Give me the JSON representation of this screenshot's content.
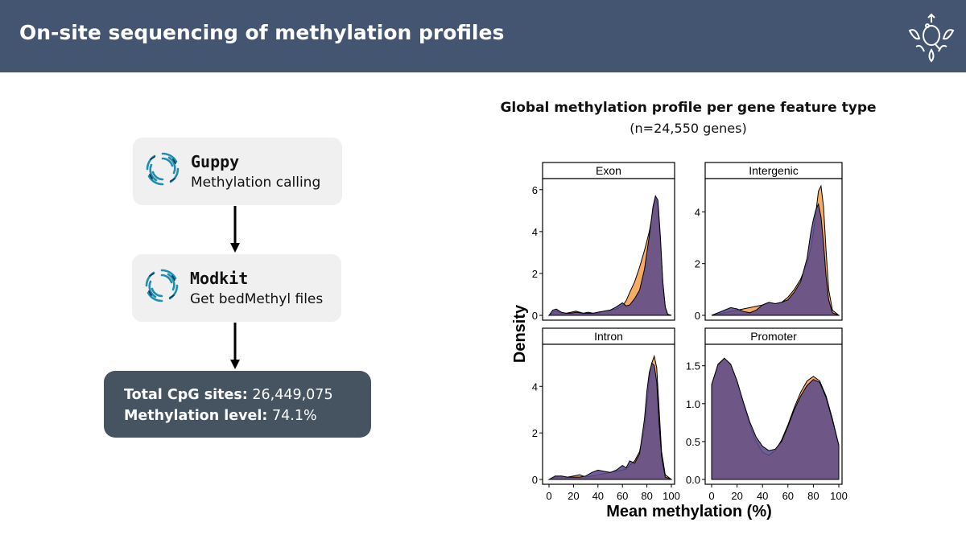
{
  "header": {
    "title": "On-site sequencing of methylation profiles",
    "logo_icon": "lotus-q-logo-icon",
    "background": "#435570"
  },
  "pipeline": {
    "steps": [
      {
        "name": "Guppy",
        "description": "Methylation calling",
        "icon": "nanopore-swirl-icon"
      },
      {
        "name": "Modkit",
        "description": "Get bedMethyl files",
        "icon": "nanopore-swirl-icon"
      }
    ],
    "summary": {
      "cpg_label": "Total CpG sites:",
      "cpg_value": "26,449,075",
      "meth_label": "Methylation level:",
      "meth_value": "74.1%",
      "background": "#465461"
    }
  },
  "chart_data": {
    "type": "area",
    "title": "Global methylation profile per gene feature type",
    "subtitle": "(n=24,550 genes)",
    "xlabel": "Mean methylation (%)",
    "ylabel": "Density",
    "xlim": [
      0,
      100
    ],
    "colors": {
      "series_a": "#f5a85a",
      "series_b": "#5b4a8c"
    },
    "panels": [
      {
        "title": "Exon",
        "ylim": [
          0,
          6.3
        ],
        "yticks": [
          0,
          2,
          4,
          6
        ],
        "series_a": {
          "x": [
            0,
            3,
            6,
            10,
            14,
            18,
            22,
            28,
            32,
            36,
            40,
            45,
            50,
            55,
            60,
            63,
            66,
            70,
            74,
            78,
            82,
            85,
            87,
            89,
            91,
            93,
            95,
            97,
            100
          ],
          "y": [
            0,
            0.15,
            0.2,
            0.1,
            0.1,
            0.15,
            0.2,
            0.1,
            0.15,
            0.1,
            0.1,
            0.2,
            0.25,
            0.3,
            0.45,
            0.7,
            1.1,
            1.6,
            2.3,
            3.1,
            4.0,
            5.0,
            5.6,
            5.2,
            3.5,
            1.5,
            0.4,
            0.05,
            0
          ]
        },
        "series_b": {
          "x": [
            0,
            3,
            6,
            10,
            14,
            18,
            22,
            28,
            32,
            36,
            40,
            45,
            50,
            55,
            60,
            63,
            66,
            70,
            74,
            78,
            82,
            85,
            87,
            89,
            91,
            93,
            95,
            97,
            100
          ],
          "y": [
            0,
            0.25,
            0.3,
            0.15,
            0.1,
            0.1,
            0.15,
            0.1,
            0.1,
            0.1,
            0.15,
            0.2,
            0.25,
            0.4,
            0.6,
            0.45,
            0.5,
            0.8,
            1.2,
            2.2,
            3.8,
            5.2,
            5.7,
            5.5,
            3.8,
            1.6,
            0.4,
            0.05,
            0
          ]
        }
      },
      {
        "title": "Intergenic",
        "ylim": [
          0,
          5.1
        ],
        "yticks": [
          0,
          2,
          4
        ],
        "series_a": {
          "x": [
            0,
            5,
            10,
            15,
            20,
            25,
            30,
            35,
            40,
            45,
            50,
            55,
            60,
            65,
            70,
            75,
            78,
            80,
            82,
            84,
            86,
            88,
            90,
            92,
            95,
            100
          ],
          "y": [
            0,
            0.05,
            0.1,
            0.15,
            0.2,
            0.25,
            0.3,
            0.35,
            0.4,
            0.5,
            0.45,
            0.5,
            0.7,
            1.0,
            1.4,
            2.0,
            2.6,
            3.2,
            4.0,
            4.8,
            5.0,
            4.2,
            2.5,
            1.0,
            0.2,
            0
          ]
        },
        "series_b": {
          "x": [
            0,
            5,
            10,
            15,
            20,
            25,
            30,
            35,
            40,
            45,
            50,
            55,
            60,
            65,
            70,
            75,
            78,
            80,
            82,
            84,
            86,
            88,
            90,
            92,
            95,
            100
          ],
          "y": [
            0,
            0.1,
            0.2,
            0.3,
            0.25,
            0.15,
            0.1,
            0.2,
            0.4,
            0.5,
            0.45,
            0.5,
            0.6,
            0.9,
            1.3,
            2.2,
            3.2,
            3.7,
            4.1,
            4.3,
            3.8,
            2.8,
            1.5,
            0.6,
            0.1,
            0
          ]
        }
      },
      {
        "title": "Intron",
        "ylim": [
          0,
          5.6
        ],
        "yticks": [
          0,
          2,
          4
        ],
        "series_a": {
          "x": [
            0,
            5,
            10,
            15,
            20,
            25,
            30,
            35,
            40,
            45,
            50,
            55,
            60,
            63,
            66,
            70,
            74,
            78,
            80,
            82,
            84,
            86,
            88,
            90,
            92,
            95,
            100
          ],
          "y": [
            0,
            0.1,
            0.15,
            0.1,
            0.15,
            0.2,
            0.1,
            0.15,
            0.2,
            0.25,
            0.3,
            0.35,
            0.4,
            0.45,
            0.6,
            0.8,
            1.2,
            2.2,
            3.2,
            4.3,
            5.0,
            5.3,
            4.8,
            3.0,
            1.2,
            0.2,
            0
          ]
        },
        "series_b": {
          "x": [
            0,
            5,
            10,
            15,
            20,
            25,
            30,
            35,
            40,
            45,
            50,
            55,
            60,
            63,
            66,
            70,
            74,
            78,
            80,
            82,
            84,
            86,
            88,
            90,
            92,
            95,
            100
          ],
          "y": [
            0,
            0.15,
            0.15,
            0.1,
            0.1,
            0.1,
            0.15,
            0.3,
            0.4,
            0.35,
            0.3,
            0.4,
            0.6,
            0.5,
            0.8,
            0.7,
            1.1,
            2.6,
            3.8,
            4.6,
            5.0,
            4.9,
            4.2,
            2.4,
            1.0,
            0.1,
            0
          ]
        }
      },
      {
        "title": "Promoter",
        "ylim": [
          0,
          1.72
        ],
        "yticks": [
          0.0,
          0.5,
          1.0,
          1.5
        ],
        "ytick_labels": [
          "0.0",
          "0.5",
          "1.0",
          "1.5"
        ],
        "series_a": {
          "x": [
            0,
            5,
            10,
            15,
            20,
            25,
            30,
            35,
            40,
            45,
            50,
            55,
            60,
            65,
            70,
            75,
            80,
            85,
            90,
            95,
            100
          ],
          "y": [
            1.25,
            1.5,
            1.6,
            1.52,
            1.3,
            1.0,
            0.72,
            0.5,
            0.36,
            0.32,
            0.38,
            0.52,
            0.72,
            0.95,
            1.15,
            1.3,
            1.36,
            1.3,
            1.1,
            0.8,
            0.45
          ]
        },
        "series_b": {
          "x": [
            0,
            5,
            10,
            15,
            20,
            25,
            30,
            35,
            40,
            45,
            50,
            55,
            60,
            65,
            70,
            75,
            80,
            85,
            90,
            95,
            100
          ],
          "y": [
            1.25,
            1.52,
            1.6,
            1.52,
            1.3,
            1.02,
            0.76,
            0.56,
            0.44,
            0.38,
            0.4,
            0.5,
            0.7,
            0.92,
            1.1,
            1.24,
            1.32,
            1.28,
            1.08,
            0.78,
            0.45
          ]
        }
      }
    ],
    "xticks": [
      0,
      20,
      40,
      60,
      80,
      100
    ],
    "grid": false
  }
}
